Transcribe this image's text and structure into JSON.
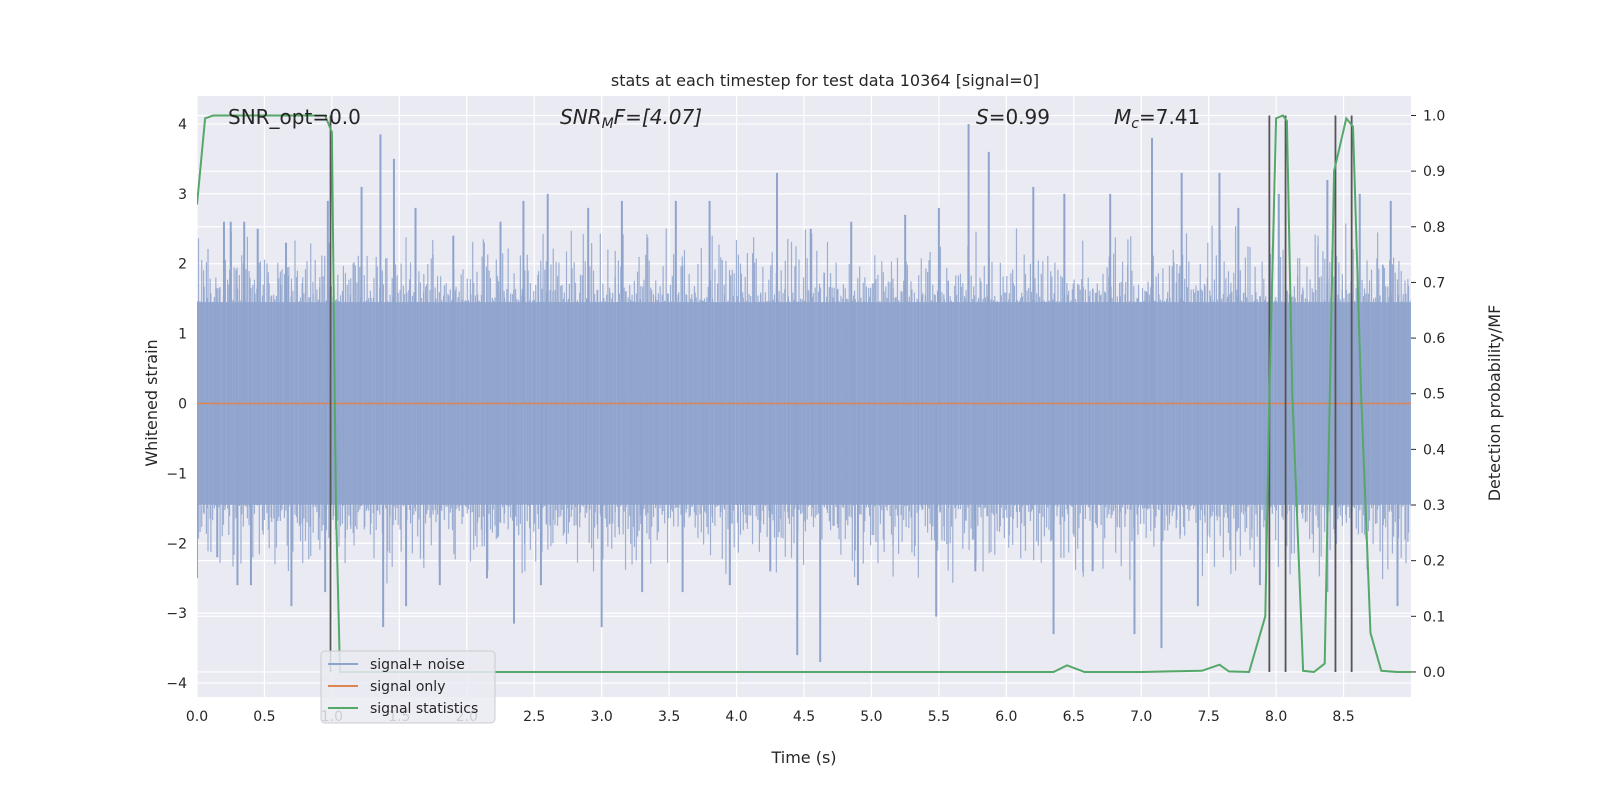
{
  "chart_data": {
    "type": "line",
    "title": "stats at each timestep for test data 10364 [signal=0]",
    "xlabel": "Time (s)",
    "ylabel": "Whitened strain",
    "y2label": "Detection probability/MF",
    "xlim": [
      0.0,
      9.0
    ],
    "ylim": [
      -4.2,
      4.4
    ],
    "y2lim": [
      -0.045,
      1.035
    ],
    "x_ticks": [
      "0.0",
      "0.5",
      "1.0",
      "1.5",
      "2.0",
      "2.5",
      "3.0",
      "3.5",
      "4.0",
      "4.5",
      "5.0",
      "5.5",
      "6.0",
      "6.5",
      "7.0",
      "7.5",
      "8.0",
      "8.5"
    ],
    "x_tick_values": [
      0.0,
      0.5,
      1.0,
      1.5,
      2.0,
      2.5,
      3.0,
      3.5,
      4.0,
      4.5,
      5.0,
      5.5,
      6.0,
      6.5,
      7.0,
      7.5,
      8.0,
      8.5
    ],
    "y_ticks": [
      "4",
      "3",
      "2",
      "1",
      "0",
      "−1",
      "−2",
      "−3",
      "−4"
    ],
    "y_tick_values": [
      4,
      3,
      2,
      1,
      0,
      -1,
      -2,
      -3,
      -4
    ],
    "y2_ticks": [
      "1.0",
      "0.9",
      "0.8",
      "0.7",
      "0.6",
      "0.5",
      "0.4",
      "0.3",
      "0.2",
      "0.1",
      "0.0"
    ],
    "y2_tick_values": [
      1.0,
      0.9,
      0.8,
      0.7,
      0.6,
      0.5,
      0.4,
      0.3,
      0.2,
      0.1,
      0.0
    ],
    "grid": true,
    "legend_placement": "lower-left",
    "annotations": {
      "snr_opt": "SNR_opt=0.0",
      "snr_mf_main": "SNR",
      "snr_mf_sub": "M",
      "snr_mf_tail": "F=[4.07]",
      "s_main": "S",
      "s_tail": "=0.99",
      "mc_main": "M",
      "mc_sub": "c",
      "mc_tail": "=7.41"
    },
    "series": [
      {
        "name": "signal+ noise",
        "color": "#8fa4cd",
        "axis": "left",
        "band": [
          -1.45,
          1.45
        ],
        "peaks": [
          [
            0.2,
            2.6
          ],
          [
            0.25,
            2.6
          ],
          [
            0.35,
            2.6
          ],
          [
            0.45,
            2.5
          ],
          [
            0.66,
            2.3
          ],
          [
            0.97,
            2.9
          ],
          [
            1.22,
            3.1
          ],
          [
            1.36,
            3.85
          ],
          [
            1.46,
            3.5
          ],
          [
            1.62,
            2.8
          ],
          [
            1.9,
            2.4
          ],
          [
            2.25,
            2.6
          ],
          [
            2.42,
            2.9
          ],
          [
            2.6,
            3.0
          ],
          [
            2.9,
            2.8
          ],
          [
            3.15,
            2.9
          ],
          [
            3.55,
            2.9
          ],
          [
            3.8,
            2.9
          ],
          [
            4.3,
            3.3
          ],
          [
            4.55,
            2.5
          ],
          [
            4.85,
            2.6
          ],
          [
            5.25,
            2.7
          ],
          [
            5.5,
            2.8
          ],
          [
            5.72,
            4.0
          ],
          [
            5.87,
            3.6
          ],
          [
            6.2,
            3.1
          ],
          [
            6.43,
            3.0
          ],
          [
            6.77,
            3.0
          ],
          [
            7.08,
            3.8
          ],
          [
            7.3,
            3.3
          ],
          [
            7.58,
            3.3
          ],
          [
            7.72,
            2.8
          ],
          [
            8.02,
            3.0
          ],
          [
            8.38,
            3.2
          ],
          [
            8.62,
            3.0
          ],
          [
            8.85,
            2.9
          ]
        ],
        "troughs": [
          [
            0.0,
            -2.5
          ],
          [
            0.15,
            -2.2
          ],
          [
            0.3,
            -2.6
          ],
          [
            0.4,
            -2.6
          ],
          [
            0.7,
            -2.9
          ],
          [
            0.95,
            -2.7
          ],
          [
            1.38,
            -3.2
          ],
          [
            1.55,
            -2.9
          ],
          [
            1.8,
            -2.6
          ],
          [
            2.15,
            -2.5
          ],
          [
            2.35,
            -3.15
          ],
          [
            2.55,
            -2.6
          ],
          [
            3.0,
            -3.2
          ],
          [
            3.3,
            -2.7
          ],
          [
            3.6,
            -2.7
          ],
          [
            3.95,
            -2.6
          ],
          [
            4.25,
            -2.4
          ],
          [
            4.45,
            -3.6
          ],
          [
            4.62,
            -3.7
          ],
          [
            4.9,
            -2.6
          ],
          [
            5.48,
            -3.05
          ],
          [
            5.77,
            -2.4
          ],
          [
            6.35,
            -3.3
          ],
          [
            6.64,
            -2.4
          ],
          [
            6.95,
            -3.3
          ],
          [
            7.15,
            -3.5
          ],
          [
            7.42,
            -2.9
          ],
          [
            7.88,
            -2.6
          ],
          [
            8.38,
            -2.7
          ],
          [
            8.9,
            -2.9
          ]
        ]
      },
      {
        "name": "signal only",
        "color": "#dd8452",
        "axis": "left",
        "x": [
          0.0,
          9.0
        ],
        "y": [
          0.0,
          0.0
        ]
      },
      {
        "name": "signal statistics",
        "color": "#55a868",
        "axis": "right",
        "x": [
          0.0,
          0.06,
          0.12,
          0.2,
          0.35,
          0.5,
          0.65,
          0.8,
          0.95,
          1.0,
          1.03,
          1.06,
          1.12,
          1.2,
          2.0,
          3.0,
          4.0,
          5.0,
          6.0,
          6.35,
          6.45,
          6.58,
          7.0,
          7.2,
          7.45,
          7.58,
          7.65,
          7.8,
          7.92,
          7.95,
          8.0,
          8.05,
          8.08,
          8.12,
          8.2,
          8.28,
          8.36,
          8.43,
          8.52,
          8.57,
          8.63,
          8.7,
          8.78,
          8.9,
          9.0
        ],
        "y": [
          0.84,
          0.995,
          1.0,
          1.0,
          1.0,
          1.0,
          1.0,
          1.0,
          1.0,
          0.97,
          0.3,
          0.0,
          0.0,
          0.0,
          0.0,
          0.0,
          0.0,
          0.0,
          0.0,
          0.0,
          0.012,
          0.0,
          0.0,
          0.001,
          0.002,
          0.013,
          0.001,
          0.0,
          0.1,
          0.5,
          0.995,
          1.0,
          0.99,
          0.5,
          0.002,
          0.0,
          0.015,
          0.9,
          0.995,
          0.98,
          0.5,
          0.07,
          0.002,
          0.0,
          0.0
        ]
      }
    ],
    "markers": {
      "color": "#555555",
      "x": [
        0.99,
        7.95,
        8.07,
        8.44,
        8.56
      ]
    }
  }
}
